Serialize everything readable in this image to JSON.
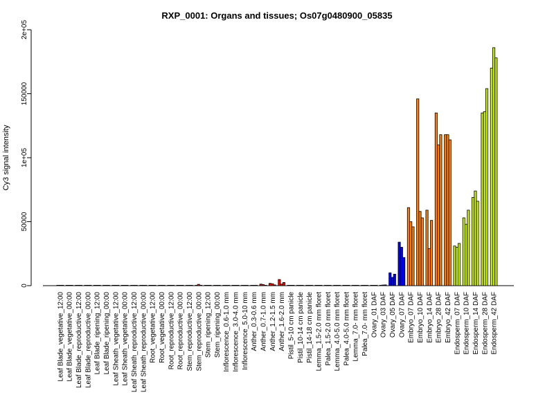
{
  "chart_data": {
    "type": "bar",
    "title": "RXP_0001: Organs and tissues; Os07g0480900_05835",
    "xlabel": "",
    "ylabel": "Cy3 signal intensity",
    "ylim": [
      0,
      200000
    ],
    "yticks": [
      0,
      50000,
      100000,
      150000,
      200000
    ],
    "ytick_labels": [
      "0",
      "50000",
      "1e+05",
      "150000",
      "2e+05"
    ],
    "grid": false,
    "legend": "none",
    "group_colors": {
      "vegetative": "#ff0000",
      "pistil": "#ff00ff",
      "ovary": "#0000ff",
      "embryo": "#ff7f00",
      "endosperm": "#ccee00"
    },
    "tick_labels": [
      "Leaf Blade_vegetative_12:00",
      "Leaf Blade_vegetative_00:00",
      "Leaf Blade_reproductive_12:00",
      "Leaf Blade_reproductive_00:00",
      "Leaf Blade_ripening_12:00",
      "Leaf Blade_ripening_00:00",
      "Leaf Sheath_vegetative_12:00",
      "Leaf Sheath_vegetative_00:00",
      "Leaf Sheath_reproductive_12:00",
      "Leaf Sheath_reproductive_00:00",
      "Root_vegetative_12:00",
      "Root_vegetative_00:00",
      "Root_reproductive_12:00",
      "Root_reproductive_00:00",
      "Stem_reproductive_12:00",
      "Stem_reproductive_00:00",
      "Stem_ripening_12:00",
      "Stem_ripening_00:00",
      "Inflorescence_0.6-1.0 mm",
      "Inflorescence_3.0-4.0 mm",
      "Inflorescence_5.0-10 mm",
      "Anther_0.3-0.6 mm",
      "Anther_0.7-1.0 mm",
      "Anther_1.2-1.5 mm",
      "Anther_1.6-2.0 mm",
      "Pistil_5-10 cm panicle",
      "Pistil_10-14 cm panicle",
      "Pistil_14-18 cm panicle",
      "Lemma_1.5-2.0 mm floret",
      "Palea_1.5-2.0 mm floret",
      "Lemma_4.0-5.0 mm floret",
      "Palea_4.0-5.0 mm floret",
      "Lemma_7.0- mm floret",
      "Palea_7.0- mm floret",
      "Ovary_01 DAF",
      "Ovary_03 DAF",
      "Ovary_05 DAF",
      "Ovary_07 DAF",
      "Embryo_07 DAF",
      "Embryo_10 DAF",
      "Embryo_14 DAF",
      "Embryo_28 DAF",
      "Embryo_42 DAF",
      "Endosperm_07 DAF",
      "Endosperm_10 DAF",
      "Endosperm_14 DAF",
      "Endosperm_28 DAF",
      "Endosperm_42 DAF"
    ],
    "bar_groups": [
      {
        "values": [
          300,
          300,
          300
        ],
        "color": "#ff0000"
      },
      {
        "values": [
          300,
          300,
          300
        ],
        "color": "#ff0000"
      },
      {
        "values": [
          300,
          300,
          300
        ],
        "color": "#ff0000"
      },
      {
        "values": [
          300,
          300,
          300
        ],
        "color": "#ff0000"
      },
      {
        "values": [
          300,
          300,
          300
        ],
        "color": "#ff0000"
      },
      {
        "values": [
          300,
          300,
          300
        ],
        "color": "#ff0000"
      },
      {
        "values": [
          300,
          300,
          300
        ],
        "color": "#ff0000"
      },
      {
        "values": [
          300,
          300,
          300
        ],
        "color": "#ff0000"
      },
      {
        "values": [
          300,
          300,
          300
        ],
        "color": "#ff0000"
      },
      {
        "values": [
          300,
          300,
          300
        ],
        "color": "#ff0000"
      },
      {
        "values": [
          300,
          300,
          300
        ],
        "color": "#ff0000"
      },
      {
        "values": [
          300,
          300,
          300
        ],
        "color": "#ff0000"
      },
      {
        "values": [
          300,
          300,
          300
        ],
        "color": "#ff0000"
      },
      {
        "values": [
          300,
          300,
          300
        ],
        "color": "#ff0000"
      },
      {
        "values": [
          300,
          300,
          300
        ],
        "color": "#ff0000"
      },
      {
        "values": [
          300,
          1000,
          300
        ],
        "color": "#ff0000"
      },
      {
        "values": [
          300,
          300,
          300
        ],
        "color": "#ff0000"
      },
      {
        "values": [
          300,
          300,
          300
        ],
        "color": "#ff0000"
      },
      {
        "values": [
          300,
          300,
          300
        ],
        "color": "#ff0000"
      },
      {
        "values": [
          300,
          300,
          300
        ],
        "color": "#ff0000"
      },
      {
        "values": [
          300,
          300,
          300
        ],
        "color": "#ff0000"
      },
      {
        "values": [
          300,
          300,
          300
        ],
        "color": "#ff0000"
      },
      {
        "values": [
          1200,
          800,
          300
        ],
        "color": "#ff0000"
      },
      {
        "values": [
          1800,
          1500,
          600
        ],
        "color": "#ff0000"
      },
      {
        "values": [
          4800,
          1200,
          2500
        ],
        "color": "#ff0000"
      },
      {
        "values": [
          300,
          300,
          300
        ],
        "color": "#ff00ff"
      },
      {
        "values": [
          300,
          300,
          300
        ],
        "color": "#ff00ff"
      },
      {
        "values": [
          300,
          300,
          300
        ],
        "color": "#ff00ff"
      },
      {
        "values": [
          300,
          300,
          300
        ],
        "color": "#ff0000"
      },
      {
        "values": [
          300,
          300,
          300
        ],
        "color": "#ff0000"
      },
      {
        "values": [
          300,
          300,
          300
        ],
        "color": "#ff0000"
      },
      {
        "values": [
          300,
          300,
          300
        ],
        "color": "#ff0000"
      },
      {
        "values": [
          300,
          300,
          300
        ],
        "color": "#ff0000"
      },
      {
        "values": [
          300,
          300,
          300
        ],
        "color": "#ff0000"
      },
      {
        "values": [
          300,
          300,
          300
        ],
        "color": "#0000ff"
      },
      {
        "values": [
          300,
          500,
          600
        ],
        "color": "#0000ff"
      },
      {
        "values": [
          10000,
          6500,
          9000
        ],
        "color": "#0000ff"
      },
      {
        "values": [
          34000,
          30000,
          22000
        ],
        "color": "#0000ff"
      },
      {
        "values": [
          61000,
          50000,
          46000
        ],
        "color": "#ff7f00"
      },
      {
        "values": [
          146000,
          58000,
          53000
        ],
        "color": "#ff7f00"
      },
      {
        "values": [
          59000,
          29000,
          51000
        ],
        "color": "#ff7f00"
      },
      {
        "values": [
          135000,
          110000,
          118000
        ],
        "color": "#ff7f00"
      },
      {
        "values": [
          118000,
          118000,
          114000
        ],
        "color": "#ff7f00"
      },
      {
        "values": [
          31000,
          30000,
          33000
        ],
        "color": "#ccee00"
      },
      {
        "values": [
          53000,
          48000,
          59000
        ],
        "color": "#ccee00"
      },
      {
        "values": [
          69000,
          74000,
          66000
        ],
        "color": "#ccee00"
      },
      {
        "values": [
          135000,
          136000,
          154000
        ],
        "color": "#ccee00"
      },
      {
        "values": [
          170000,
          186000,
          178000
        ],
        "color": "#ccee00"
      }
    ]
  }
}
